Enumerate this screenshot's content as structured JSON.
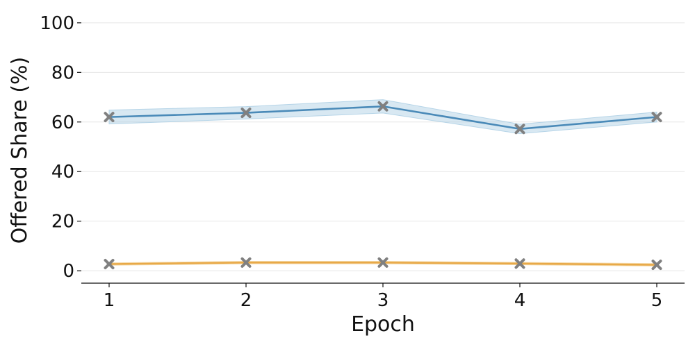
{
  "chart_data": {
    "type": "line",
    "xlabel": "Epoch",
    "ylabel": "Offered Share (%)",
    "x": [
      1,
      2,
      3,
      4,
      5
    ],
    "xticks": [
      1,
      2,
      3,
      4,
      5
    ],
    "ylim": [
      -5,
      105
    ],
    "yticks": [
      0,
      20,
      40,
      60,
      80,
      100
    ],
    "grid": "horizontal",
    "series": [
      {
        "color": "#4a8ab8",
        "band_color": "#a9cde3",
        "values": [
          62.0,
          63.7,
          66.3,
          57.2,
          62.0
        ],
        "lower": [
          59.2,
          61.2,
          63.6,
          55.3,
          60.0
        ],
        "upper": [
          64.8,
          66.2,
          69.0,
          59.1,
          64.0
        ]
      },
      {
        "color": "#e8a948",
        "band_color": "#f2d39a",
        "values": [
          2.7,
          3.3,
          3.3,
          2.9,
          2.4
        ],
        "lower": [
          2.2,
          2.8,
          2.8,
          2.4,
          1.9
        ],
        "upper": [
          3.2,
          3.8,
          3.8,
          3.4,
          2.9
        ]
      }
    ],
    "marker": {
      "shape": "x",
      "color": "#808080"
    }
  }
}
